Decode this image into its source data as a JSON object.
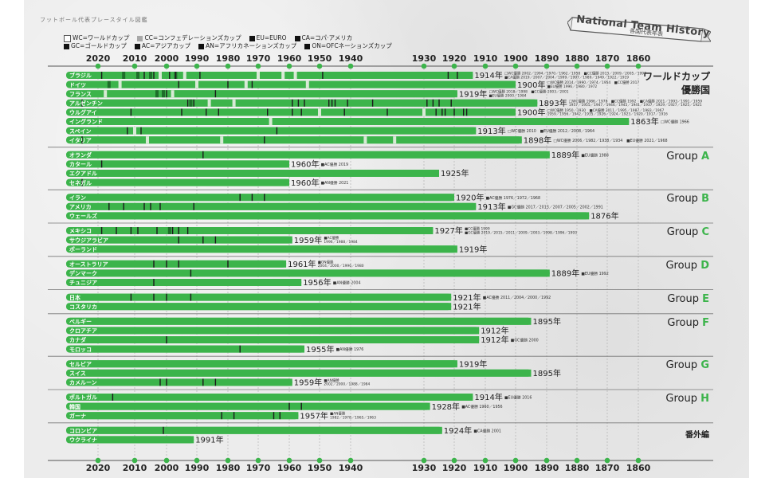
{
  "header": {
    "subtitle": "フットボール代表プレースタイル図鑑",
    "banner_title": "National Team History",
    "banner_subtitle": "各国代表年表"
  },
  "legend": {
    "row1": [
      {
        "label": "WC=ワールドカップ",
        "color": "#ffffff",
        "border": true
      },
      {
        "label": "CC=コンフェデレーションズカップ",
        "color": "#a8a8a8"
      },
      {
        "label": "EU=EURO",
        "color": "#111111"
      },
      {
        "label": "CA=コパ·アメリカ",
        "color": "#111111"
      }
    ],
    "row2": [
      {
        "label": "GC=ゴールドカップ",
        "color": "#111111"
      },
      {
        "label": "AC=アジアカップ",
        "color": "#111111"
      },
      {
        "label": "AN=アフリカネーションズカップ",
        "color": "#111111"
      },
      {
        "label": "ON=OFCネーションズカップ",
        "color": "#111111"
      }
    ]
  },
  "colors": {
    "bar": "#3cb44b",
    "wc_win": "#d8ead6",
    "title_win": "#1a1a1a",
    "dark_green": "#1e6e2a",
    "axis_dot": "#3cb44b",
    "group_accent": "#3cb44b"
  },
  "section_labels": {
    "world_cup": "ワールドカップ\n優勝国",
    "world_cup_line1": "ワールドカップ",
    "world_cup_line2": "優勝国",
    "extra": "番外編"
  },
  "chart_data": {
    "type": "bar",
    "title": "National Team History",
    "subtitle": "各国代表年表",
    "xlabel": "",
    "ylabel": "",
    "x_axis_ticks": [
      2020,
      2010,
      2000,
      1990,
      1980,
      1970,
      1960,
      1950,
      1940,
      1930,
      1920,
      1910,
      1900,
      1890,
      1880,
      1870,
      1860
    ],
    "x_axis_direction": "reversed",
    "x_range": [
      2022,
      1860
    ],
    "axis_break": [
      1940,
      1930
    ],
    "year_suffix": "年",
    "groups": [
      {
        "name": "ワールドカップ優勝国",
        "label_prefix": "",
        "label_letter": "",
        "teams": [
          {
            "name": "ブラジル",
            "founded": 1914,
            "note_lines": [
              "□WC優勝 2002／1994／1970／1962／1958　■CC優勝 2013／2009／2005／1997",
              "■CA優勝 2019／2007／2004／1999／1997／1989／1949／1922／1919"
            ],
            "wc_wins": [
              2002,
              1994,
              1970,
              1962,
              1958
            ],
            "cc_wins": [
              2013,
              2009,
              2005,
              1997
            ],
            "titles": [
              2019,
              2007,
              2004,
              1999,
              1997,
              1989,
              1949,
              1922,
              1919
            ]
          },
          {
            "name": "ドイツ",
            "founded": 1900,
            "note_lines": [
              "□WC優勝 2014／1990／1974／1954　■CC優勝 2017",
              "■EU優勝 1996／1980／1972"
            ],
            "wc_wins": [
              2014,
              1990,
              1974,
              1954
            ],
            "cc_wins": [
              2017
            ],
            "titles": [
              1996,
              1980,
              1972
            ]
          },
          {
            "name": "フランス",
            "founded": 1919,
            "note_lines": [
              "□WC優勝 2018／1998　■CC優勝 2003／2001",
              "■EU優勝 2000／1984"
            ],
            "wc_wins": [
              2018,
              1998
            ],
            "cc_wins": [
              2003,
              2001
            ],
            "titles": [
              2000,
              1984
            ]
          },
          {
            "name": "アルゼンチン",
            "founded": 1893,
            "note_lines": [
              "□WC優勝 1986／1978　■CC優勝 1992　■CA優勝 2021／1993／1991／1959",
              "1957／1955／1947／1946／1945／1941／1937／1929／1927／1925／1921"
            ],
            "wc_wins": [
              1986,
              1978
            ],
            "cc_wins": [
              1992
            ],
            "titles": [
              2021,
              1993,
              1991,
              1959,
              1957,
              1955,
              1947,
              1946,
              1945,
              1941,
              1937,
              1929,
              1927,
              1925,
              1921
            ]
          },
          {
            "name": "ウルグアイ",
            "founded": 1900,
            "note_lines": [
              "□WC優勝 1950／1930　■CA優勝 2011／1995／1987／1983／1967",
              "1959／1956／1942／1935／1926／1924／1923／1920／1917／1916"
            ],
            "wc_wins": [
              1950,
              1930
            ],
            "cc_wins": [],
            "titles": [
              2011,
              1995,
              1987,
              1983,
              1967,
              1959,
              1956,
              1942,
              1935,
              1926,
              1924,
              1923,
              1920,
              1917,
              1916
            ]
          },
          {
            "name": "イングランド",
            "founded": 1863,
            "note_lines": [
              "□WC優勝 1966"
            ],
            "wc_wins": [
              1966
            ],
            "cc_wins": [],
            "titles": []
          },
          {
            "name": "スペイン",
            "founded": 1913,
            "note_lines": [
              "□WC優勝 2010　■EU優勝 2012／2008／1964"
            ],
            "wc_wins": [
              2010
            ],
            "cc_wins": [],
            "titles": [
              2012,
              2008,
              1964
            ]
          },
          {
            "name": "イタリア",
            "founded": 1898,
            "note_lines": [
              "□WC優勝 2006／1982／1938／1934　■EU優勝 2021／1968"
            ],
            "wc_wins": [
              2006,
              1982,
              1938,
              1934
            ],
            "cc_wins": [],
            "titles": [
              2021,
              1968
            ]
          }
        ]
      },
      {
        "name": "Group A",
        "label_prefix": "Group ",
        "label_letter": "A",
        "teams": [
          {
            "name": "オランダ",
            "founded": 1889,
            "note_lines": [
              "■EU優勝 1988"
            ],
            "titles": [
              1988
            ]
          },
          {
            "name": "カタール",
            "founded": 1960,
            "note_lines": [
              "■AC優勝 2019"
            ],
            "titles": [
              2019
            ]
          },
          {
            "name": "エクアドル",
            "founded": 1925,
            "note_lines": [],
            "titles": []
          },
          {
            "name": "セネガル",
            "founded": 1960,
            "note_lines": [
              "■AN優勝 2021"
            ],
            "titles": [
              2021
            ]
          }
        ]
      },
      {
        "name": "Group B",
        "label_prefix": "Group ",
        "label_letter": "B",
        "teams": [
          {
            "name": "イラン",
            "founded": 1920,
            "note_lines": [
              "■AC優勝 1976／1972／1968"
            ],
            "titles": [
              1976,
              1972,
              1968
            ]
          },
          {
            "name": "アメリカ",
            "founded": 1913,
            "note_lines": [
              "■GC優勝 2017／2013／2007／2005／2002／1991"
            ],
            "titles": [
              2017,
              2013,
              2007,
              2005,
              2002,
              1991
            ]
          },
          {
            "name": "ウェールズ",
            "founded": 1876,
            "note_lines": [],
            "titles": []
          }
        ]
      },
      {
        "name": "Group C",
        "label_prefix": "Group ",
        "label_letter": "C",
        "teams": [
          {
            "name": "メキシコ",
            "founded": 1927,
            "note_lines": [
              "■CC優勝 1999",
              "■GC優勝 2019／2015／2011／2009／2003／1998／1996／1993"
            ],
            "cc_wins": [
              1999
            ],
            "titles": [
              2019,
              2015,
              2011,
              2009,
              2003,
              1998,
              1996,
              1993
            ]
          },
          {
            "name": "サウジアラビア",
            "founded": 1959,
            "note_lines": [
              "■AC優勝",
              "1996／1988／1984"
            ],
            "titles": [
              1996,
              1988,
              1984
            ]
          },
          {
            "name": "ポーランド",
            "founded": 1919,
            "note_lines": [],
            "titles": []
          }
        ]
      },
      {
        "name": "Group D",
        "label_prefix": "Group ",
        "label_letter": "D",
        "teams": [
          {
            "name": "オーストラリア",
            "founded": 1961,
            "note_lines": [
              "■ON優勝",
              "2004／2000／1996／1980"
            ],
            "titles": [
              2004,
              2000,
              1996,
              1980
            ]
          },
          {
            "name": "デンマーク",
            "founded": 1889,
            "note_lines": [
              "■EU優勝 1992"
            ],
            "titles": [
              1992
            ]
          },
          {
            "name": "チュニジア",
            "founded": 1956,
            "note_lines": [
              "■AN優勝 2004"
            ],
            "titles": [
              2004
            ]
          }
        ]
      },
      {
        "name": "Group E",
        "label_prefix": "Group ",
        "label_letter": "E",
        "teams": [
          {
            "name": "日本",
            "founded": 1921,
            "note_lines": [
              "■AC優勝 2011／2004／2000／1992"
            ],
            "titles": [
              2011,
              2004,
              2000,
              1992
            ]
          },
          {
            "name": "コスタリカ",
            "founded": 1921,
            "note_lines": [],
            "titles": []
          }
        ]
      },
      {
        "name": "Group F",
        "label_prefix": "Group ",
        "label_letter": "F",
        "teams": [
          {
            "name": "ベルギー",
            "founded": 1895,
            "note_lines": [],
            "titles": []
          },
          {
            "name": "クロアチア",
            "founded": 1912,
            "note_lines": [],
            "titles": []
          },
          {
            "name": "カナダ",
            "founded": 1912,
            "note_lines": [
              "■GC優勝 2000"
            ],
            "titles": [
              2000
            ]
          },
          {
            "name": "モロッコ",
            "founded": 1955,
            "note_lines": [
              "■AN優勝 1976"
            ],
            "titles": [
              1976
            ]
          }
        ]
      },
      {
        "name": "Group G",
        "label_prefix": "Group ",
        "label_letter": "G",
        "teams": [
          {
            "name": "セルビア",
            "founded": 1919,
            "note_lines": [],
            "titles": []
          },
          {
            "name": "スイス",
            "founded": 1895,
            "note_lines": [],
            "titles": []
          },
          {
            "name": "カメルーン",
            "founded": 1959,
            "note_lines": [
              "■AN優勝",
              "2002／2000／1988／1984"
            ],
            "titles": [
              2002,
              2000,
              1988,
              1984
            ]
          }
        ]
      },
      {
        "name": "Group H",
        "label_prefix": "Group ",
        "label_letter": "H",
        "teams": [
          {
            "name": "ポルトガル",
            "founded": 1914,
            "note_lines": [
              "■EU優勝 2016"
            ],
            "titles": [
              2016
            ]
          },
          {
            "name": "韓国",
            "founded": 1928,
            "note_lines": [
              "■AC優勝 1960／1956"
            ],
            "titles": [
              1960,
              1956
            ]
          },
          {
            "name": "ガーナ",
            "founded": 1957,
            "note_lines": [
              "■AN優勝",
              "1982／1978／1965／1963"
            ],
            "titles": [
              1982,
              1978,
              1965,
              1963
            ]
          }
        ]
      },
      {
        "name": "番外編",
        "label_prefix": "",
        "label_letter": "",
        "teams": [
          {
            "name": "コロンビア",
            "founded": 1924,
            "note_lines": [
              "■CA優勝 2001"
            ],
            "titles": [
              2001
            ]
          },
          {
            "name": "ウクライナ",
            "founded": 1991,
            "note_lines": [],
            "titles": []
          }
        ]
      }
    ]
  }
}
